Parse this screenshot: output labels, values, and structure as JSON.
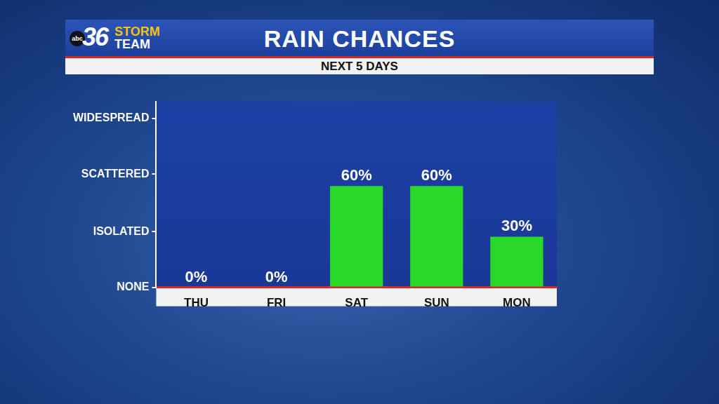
{
  "chart_data": {
    "type": "bar",
    "title": "RAIN CHANCES",
    "subtitle": "NEXT 5 DAYS",
    "annotations": [
      "abc",
      "36",
      "STORM",
      "TEAM"
    ],
    "categories": [
      "THU",
      "FRI",
      "SAT",
      "SUN",
      "MON"
    ],
    "values": [
      0,
      0,
      60,
      60,
      30
    ],
    "value_labels": [
      "0%",
      "0%",
      "60%",
      "60%",
      "30%"
    ],
    "data_labels": true,
    "color": "#29d829",
    "ylim": [
      0,
      110
    ],
    "yticks": [
      {
        "value": 0,
        "label": "NONE"
      },
      {
        "value": 33,
        "label": "ISOLATED"
      },
      {
        "value": 67,
        "label": "SCATTERED"
      },
      {
        "value": 100,
        "label": "WIDESPREAD"
      }
    ],
    "grid": false
  }
}
